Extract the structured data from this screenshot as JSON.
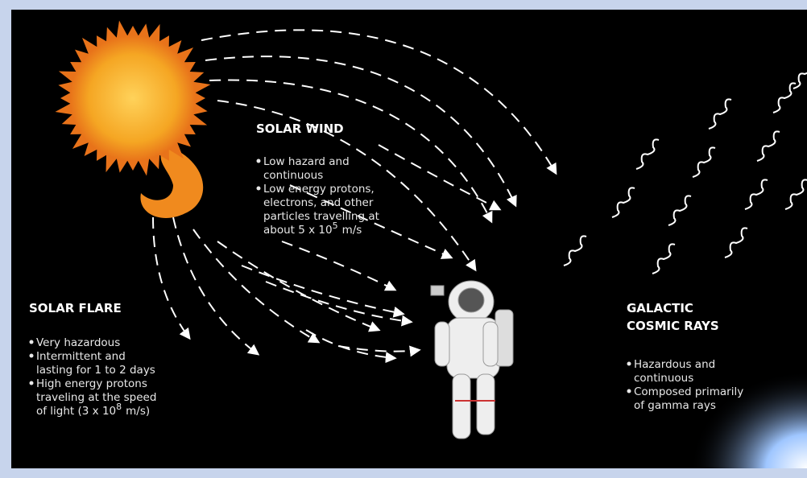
{
  "solar_wind": {
    "title": "SOLAR WIND",
    "bullets": [
      {
        "lines": [
          "Low hazard and",
          "continuous"
        ]
      },
      {
        "lines": [
          "Low energy protons,",
          "electrons, and other",
          "particles travelling at",
          "about 5 x 10"
        ],
        "exponent": "5",
        "unit": "m/s"
      }
    ]
  },
  "solar_flare": {
    "title": "SOLAR FLARE",
    "bullets": [
      {
        "lines": [
          "Very hazardous"
        ]
      },
      {
        "lines": [
          "Intermittent and",
          "lasting for 1 to 2 days"
        ]
      },
      {
        "lines": [
          "High energy protons",
          "traveling at the speed",
          "of light (3 x 10"
        ],
        "exponent": "8",
        "unit": "m/s)"
      }
    ]
  },
  "cosmic_rays": {
    "title_lines": [
      "GALACTIC",
      "COSMIC RAYS"
    ],
    "bullets": [
      {
        "lines": [
          "Hazardous and",
          "continuous"
        ]
      },
      {
        "lines": [
          "Composed primarily",
          "of gamma rays"
        ]
      }
    ]
  }
}
